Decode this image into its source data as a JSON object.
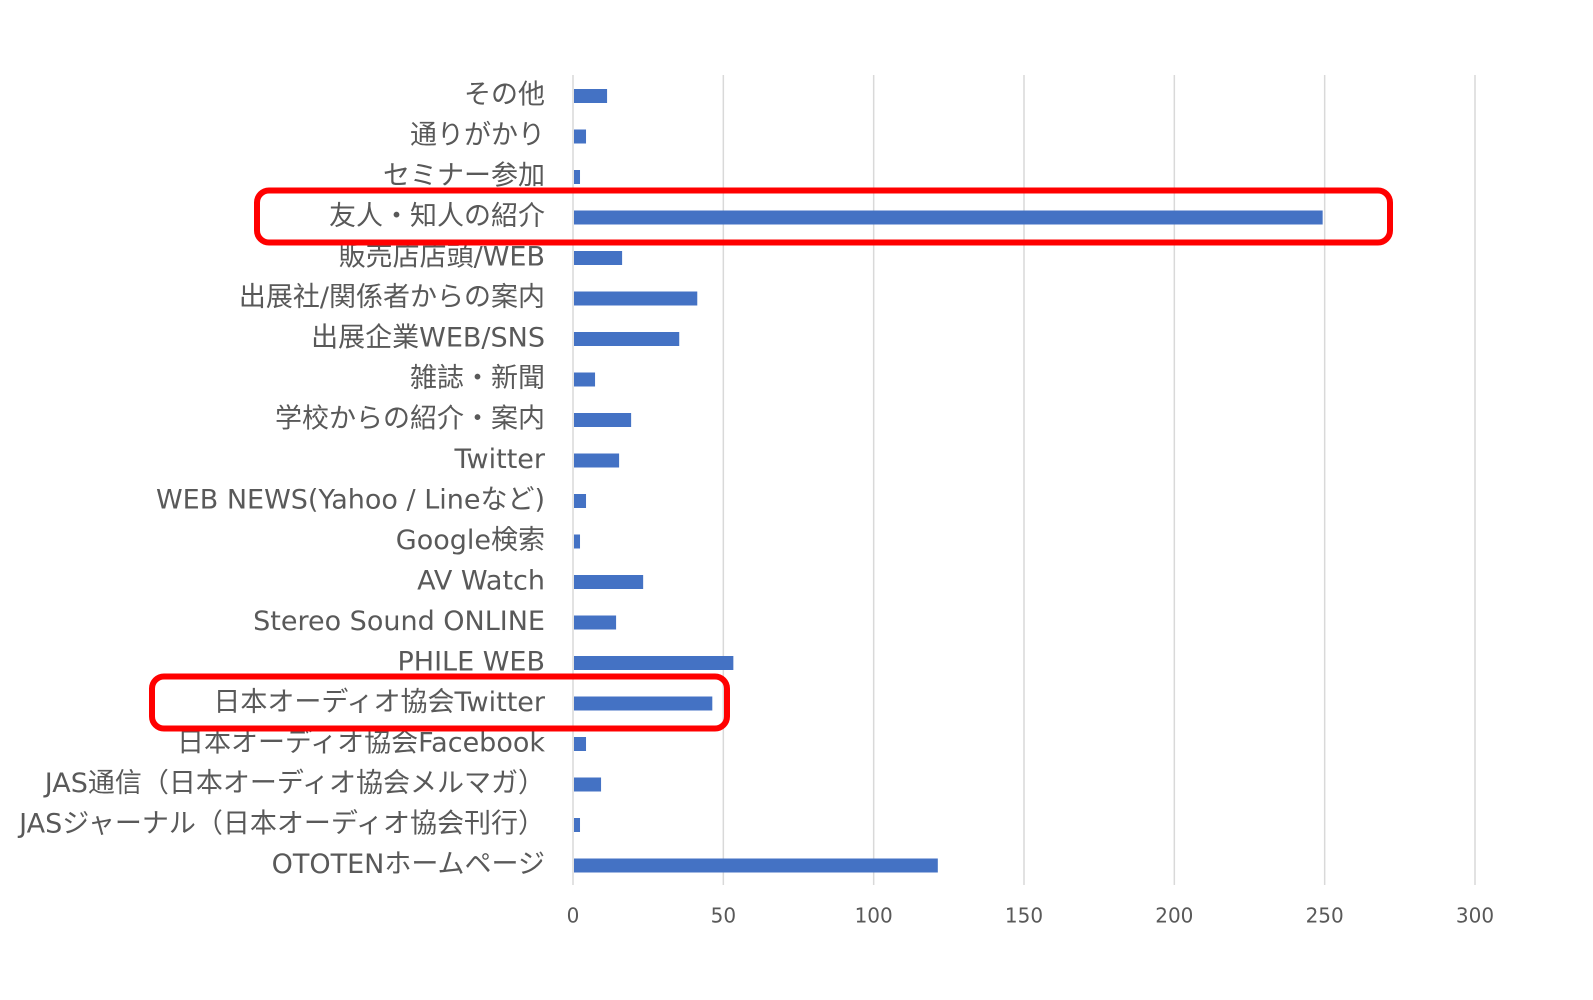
{
  "chart_data": {
    "type": "bar",
    "orientation": "horizontal",
    "categories": [
      "その他",
      "通りがかり",
      "セミナー参加",
      "友人・知人の紹介",
      "販売店店頭/WEB",
      "出展社/関係者からの案内",
      "出展企業WEB/SNS",
      "雑誌・新聞",
      "学校からの紹介・案内",
      "Twitter",
      "WEB NEWS(Yahoo / Lineなど)",
      "Google検索",
      "AV Watch",
      "Stereo Sound ONLINE",
      "PHILE WEB",
      "日本オーディオ協会Twitter",
      "日本オーディオ協会Facebook",
      "JAS通信（日本オーディオ協会メルマガ）",
      "JASジャーナル（日本オーディオ協会刊行）",
      "OTOTENホームページ"
    ],
    "values": [
      11,
      4,
      2,
      249,
      16,
      41,
      35,
      7,
      19,
      15,
      4,
      2,
      23,
      14,
      53,
      46,
      4,
      9,
      2,
      121
    ],
    "xlim": [
      0,
      300
    ],
    "xticks": [
      0,
      50,
      100,
      150,
      200,
      250,
      300
    ],
    "grid": true,
    "legend": "none",
    "bar_color": "#4472C4",
    "grid_color": "#D9D9D9",
    "text_color": "#595959",
    "highlights": [
      {
        "category": "友人・知人の紹介",
        "color": "#FF0000"
      },
      {
        "category": "日本オーディオ協会Twitter",
        "color": "#FF0000"
      }
    ]
  }
}
